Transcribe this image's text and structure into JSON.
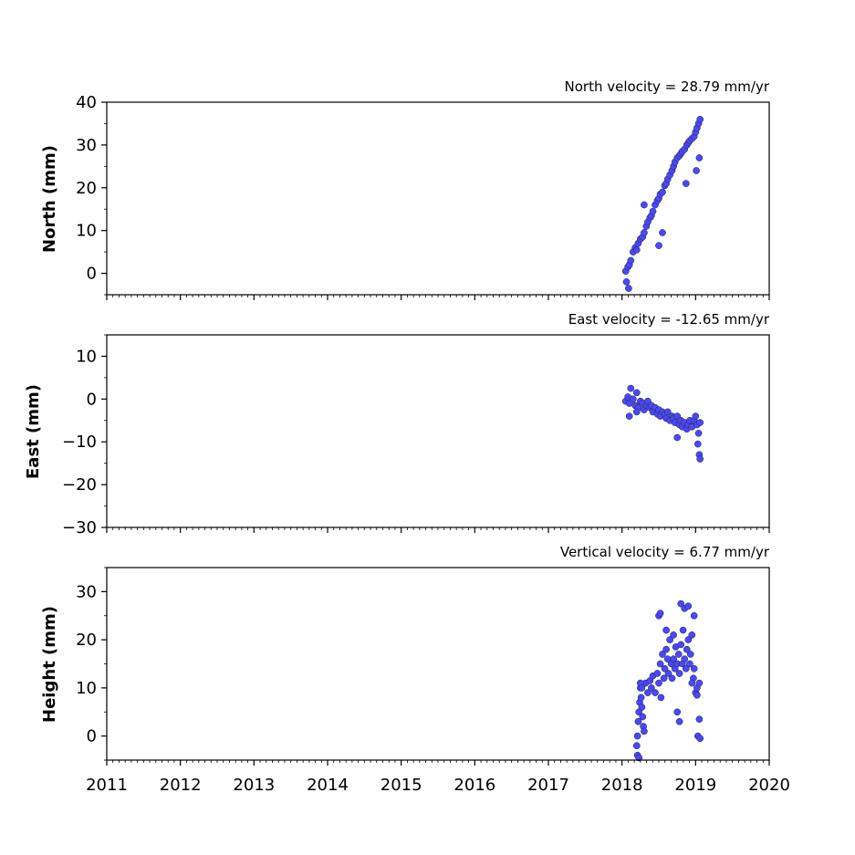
{
  "chart_data": [
    {
      "type": "scatter",
      "title": "North velocity = 28.79 mm/yr",
      "xlabel": "",
      "ylabel": "North (mm)",
      "xlim": [
        2011,
        2020
      ],
      "ylim": [
        -5,
        40
      ],
      "yticks": [
        0,
        10,
        20,
        30,
        40
      ],
      "ytick_labels": [
        "0",
        "10",
        "20",
        "30",
        "40"
      ],
      "xticks": [
        2011,
        2012,
        2013,
        2014,
        2015,
        2016,
        2017,
        2018,
        2019,
        2020
      ],
      "xtick_labels": [],
      "grid": false,
      "marker_color": "#4a4af0",
      "marker_edge": "#222244",
      "series": [
        {
          "x": [
            2018.05,
            2018.08,
            2018.1,
            2018.12,
            2018.15,
            2018.18,
            2018.2,
            2018.22,
            2018.25,
            2018.28,
            2018.3,
            2018.33,
            2018.35,
            2018.38,
            2018.4,
            2018.42,
            2018.45,
            2018.48,
            2018.5,
            2018.52,
            2018.55,
            2018.58,
            2018.6,
            2018.62,
            2018.65,
            2018.68,
            2018.7,
            2018.72,
            2018.75,
            2018.78,
            2018.8,
            2018.82,
            2018.85,
            2018.88,
            2018.9,
            2018.92,
            2018.95,
            2018.98,
            2019.0,
            2019.02,
            2019.04,
            2019.06,
            2018.06,
            2018.09,
            2018.3,
            2018.5,
            2018.55,
            2018.87,
            2019.01,
            2019.05
          ],
          "y": [
            0.5,
            1.5,
            2.0,
            3.0,
            5.0,
            6.0,
            5.5,
            7.0,
            8.0,
            8.5,
            9.5,
            11.0,
            12.0,
            13.0,
            13.5,
            14.5,
            16.0,
            17.0,
            17.5,
            18.5,
            19.0,
            20.5,
            21.0,
            22.0,
            23.0,
            24.0,
            25.0,
            26.0,
            27.0,
            27.5,
            28.0,
            28.5,
            29.0,
            30.0,
            30.5,
            31.0,
            31.5,
            32.0,
            33.0,
            34.0,
            35.0,
            36.0,
            -2.0,
            -3.5,
            16.0,
            6.5,
            9.5,
            21.0,
            24.0,
            27.0
          ]
        }
      ]
    },
    {
      "type": "scatter",
      "title": "East velocity = -12.65 mm/yr",
      "xlabel": "",
      "ylabel": "East (mm)",
      "xlim": [
        2011,
        2020
      ],
      "ylim": [
        -30,
        15
      ],
      "yticks": [
        10,
        0,
        -10,
        -20,
        -30
      ],
      "ytick_labels": [
        "10",
        "0",
        "−10",
        "−20",
        "−30"
      ],
      "xticks": [
        2011,
        2012,
        2013,
        2014,
        2015,
        2016,
        2017,
        2018,
        2019,
        2020
      ],
      "xtick_labels": [],
      "grid": false,
      "marker_color": "#4a4af0",
      "marker_edge": "#222244",
      "series": [
        {
          "x": [
            2018.05,
            2018.08,
            2018.1,
            2018.12,
            2018.15,
            2018.18,
            2018.2,
            2018.22,
            2018.25,
            2018.28,
            2018.3,
            2018.33,
            2018.35,
            2018.38,
            2018.4,
            2018.42,
            2018.45,
            2018.48,
            2018.5,
            2018.52,
            2018.55,
            2018.58,
            2018.6,
            2018.62,
            2018.65,
            2018.68,
            2018.7,
            2018.72,
            2018.75,
            2018.78,
            2018.8,
            2018.82,
            2018.85,
            2018.88,
            2018.9,
            2018.92,
            2018.95,
            2018.98,
            2019.0,
            2019.02,
            2019.04,
            2019.06,
            2018.1,
            2018.2,
            2018.75,
            2019.03,
            2019.05,
            2019.06
          ],
          "y": [
            -0.5,
            0.5,
            -1.0,
            2.5,
            0.0,
            -1.5,
            1.5,
            -2.0,
            -0.5,
            -1.0,
            -2.5,
            -1.5,
            -0.5,
            -2.0,
            -1.5,
            -3.0,
            -2.0,
            -3.5,
            -2.5,
            -4.0,
            -3.0,
            -3.5,
            -4.5,
            -3.0,
            -5.0,
            -4.0,
            -4.5,
            -5.5,
            -4.0,
            -6.0,
            -5.0,
            -6.5,
            -5.5,
            -7.0,
            -6.0,
            -5.0,
            -6.5,
            -5.0,
            -4.0,
            -6.0,
            -8.0,
            -5.5,
            -4.0,
            -3.0,
            -9.0,
            -10.5,
            -13.0,
            -14.0
          ]
        }
      ]
    },
    {
      "type": "scatter",
      "title": "Vertical velocity = 6.77 mm/yr",
      "xlabel": "",
      "ylabel": "Height (mm)",
      "xlim": [
        2011,
        2020
      ],
      "ylim": [
        -5,
        35
      ],
      "yticks": [
        0,
        10,
        20,
        30
      ],
      "ytick_labels": [
        "0",
        "10",
        "20",
        "30"
      ],
      "xticks": [
        2011,
        2012,
        2013,
        2014,
        2015,
        2016,
        2017,
        2018,
        2019,
        2020
      ],
      "xtick_labels": [
        "2011",
        "2012",
        "2013",
        "2014",
        "2015",
        "2016",
        "2017",
        "2018",
        "2019",
        "2020"
      ],
      "grid": false,
      "marker_color": "#4a4af0",
      "marker_edge": "#222244",
      "series": [
        {
          "x": [
            2018.2,
            2018.21,
            2018.22,
            2018.23,
            2018.24,
            2018.25,
            2018.26,
            2018.27,
            2018.28,
            2018.29,
            2018.3,
            2018.32,
            2018.35,
            2018.38,
            2018.4,
            2018.42,
            2018.45,
            2018.48,
            2018.5,
            2018.5,
            2018.52,
            2018.55,
            2018.57,
            2018.58,
            2018.6,
            2018.62,
            2018.63,
            2018.65,
            2018.67,
            2018.68,
            2018.7,
            2018.72,
            2018.73,
            2018.75,
            2018.77,
            2018.78,
            2018.8,
            2018.82,
            2018.83,
            2018.85,
            2018.87,
            2018.88,
            2018.9,
            2018.92,
            2018.93,
            2018.95,
            2018.97,
            2018.98,
            2019.0,
            2019.02,
            2019.03,
            2019.05,
            2019.06,
            2018.21,
            2018.23,
            2018.25,
            2018.27,
            2018.52,
            2018.53,
            2018.6,
            2018.7,
            2018.75,
            2018.78,
            2018.8,
            2018.85,
            2018.9,
            2018.95,
            2018.98,
            2019.02,
            2019.05
          ],
          "y": [
            -2.0,
            0.0,
            3.0,
            5.0,
            7.0,
            10.0,
            8.0,
            6.0,
            4.0,
            2.0,
            1.0,
            11.0,
            9.0,
            11.5,
            10.0,
            12.5,
            9.0,
            13.0,
            11.0,
            25.0,
            15.0,
            17.0,
            12.0,
            14.0,
            18.0,
            16.0,
            13.0,
            20.0,
            15.0,
            12.0,
            16.0,
            14.0,
            18.5,
            15.0,
            17.0,
            13.0,
            19.0,
            15.0,
            22.0,
            16.0,
            14.0,
            18.0,
            20.0,
            15.0,
            17.0,
            21.0,
            12.0,
            14.0,
            9.0,
            10.0,
            0.0,
            3.5,
            -0.5,
            -4.0,
            -4.5,
            11.0,
            10.0,
            25.5,
            8.0,
            22.0,
            21.0,
            5.0,
            3.0,
            27.5,
            26.5,
            27.0,
            11.0,
            25.0,
            8.5,
            11.0
          ]
        }
      ]
    }
  ]
}
